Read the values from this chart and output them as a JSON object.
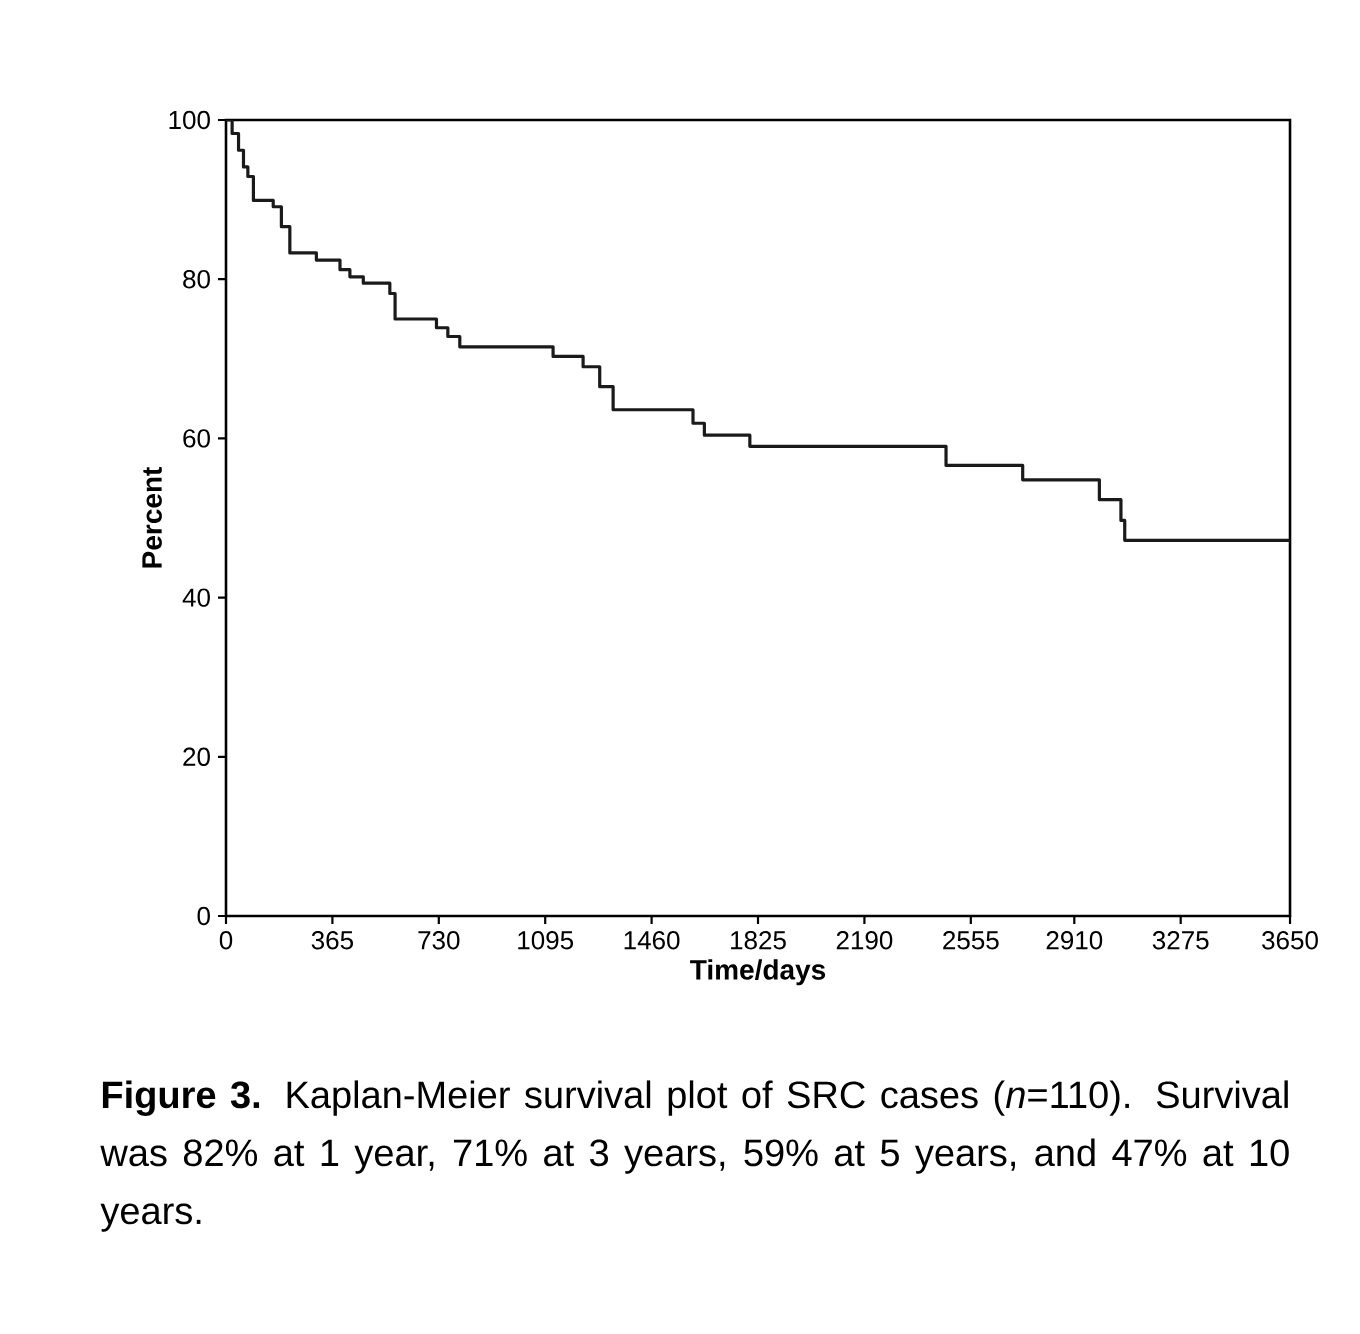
{
  "chart_data": {
    "type": "step",
    "xlabel": "Time/days",
    "ylabel": "Percent",
    "x": [
      0,
      21,
      43,
      60,
      75,
      94,
      162,
      190,
      219,
      310,
      391,
      425,
      471,
      562,
      580,
      722,
      761,
      802,
      1122,
      1225,
      1282,
      1328,
      1602,
      1641,
      1797,
      2470,
      2733,
      2996,
      3070,
      3083,
      3650
    ],
    "series": [
      {
        "color": "#1a1a1a",
        "values": [
          100,
          98.3,
          96.2,
          94.1,
          92.9,
          89.9,
          89.1,
          86.6,
          83.3,
          82.4,
          81.2,
          80.3,
          79.5,
          78.2,
          75.0,
          73.9,
          72.8,
          71.5,
          70.3,
          69.0,
          66.5,
          63.6,
          61.9,
          60.4,
          59.0,
          56.6,
          54.8,
          52.3,
          49.7,
          47.2,
          47.2
        ]
      }
    ],
    "xlim": [
      0,
      3650
    ],
    "ylim": [
      0,
      100
    ],
    "xticks": [
      0,
      365,
      730,
      1095,
      1460,
      1825,
      2190,
      2555,
      2910,
      3275,
      3650
    ],
    "yticks": [
      0,
      20,
      40,
      60,
      80,
      100
    ],
    "annotations": [
      "**Figure 3.** Kaplan-Meier survival plot of SRC cases (*n*=110). Survival was 82% at 1 year, 71% at 3 years, 59% at 5 years, and 47% at 10 years."
    ]
  }
}
